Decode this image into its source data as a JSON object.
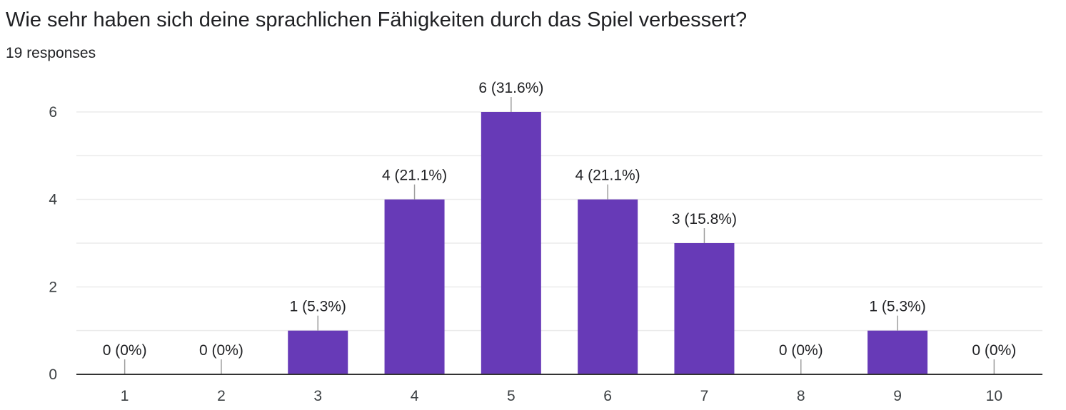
{
  "header": {
    "question": "Wie sehr haben sich deine sprachlichen Fähigkeiten durch das Spiel verbessert?",
    "responses": "19 responses"
  },
  "chart_data": {
    "type": "bar",
    "title": "Wie sehr haben sich deine sprachlichen Fähigkeiten durch das Spiel verbessert?",
    "subtitle": "19 responses",
    "categories": [
      "1",
      "2",
      "3",
      "4",
      "5",
      "6",
      "7",
      "8",
      "9",
      "10"
    ],
    "values": [
      0,
      0,
      1,
      4,
      6,
      4,
      3,
      0,
      1,
      0
    ],
    "data_labels": [
      "0 (0%)",
      "0 (0%)",
      "1 (5.3%)",
      "4 (21.1%)",
      "6 (31.6%)",
      "4 (21.1%)",
      "3 (15.8%)",
      "0 (0%)",
      "1 (5.3%)",
      "0 (0%)"
    ],
    "y_ticks": [
      "0",
      "2",
      "4",
      "6"
    ],
    "ylim": [
      0,
      6
    ],
    "xlabel": "",
    "ylabel": "",
    "grid": true,
    "colors": {
      "bar": "#673ab7",
      "grid": "#ebebeb",
      "axis": "#333333",
      "leader": "#9e9e9e"
    }
  }
}
